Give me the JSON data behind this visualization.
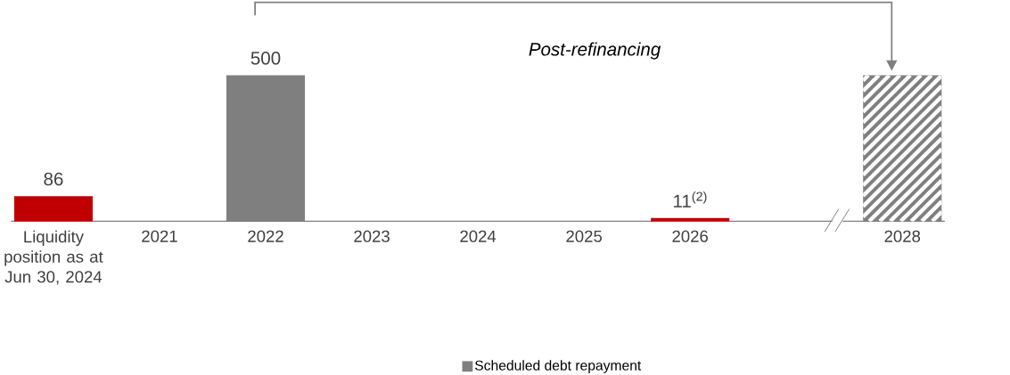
{
  "chart_data": {
    "type": "bar",
    "categories": [
      "Liquidity position as at Jun 30, 2024",
      "2021",
      "2022",
      "2023",
      "2024",
      "2025",
      "2026",
      null,
      "2028"
    ],
    "series": [
      {
        "name": "Scheduled debt repayment",
        "color": "#7f7f7f",
        "values": [
          null,
          null,
          500,
          null,
          null,
          null,
          null,
          null,
          null
        ],
        "value_labels": [
          null,
          null,
          "500",
          null,
          null,
          null,
          null,
          null,
          null
        ]
      },
      {
        "color": "#c00000",
        "values": [
          86,
          null,
          null,
          null,
          null,
          null,
          11,
          null,
          null
        ],
        "value_labels": [
          "86",
          null,
          null,
          null,
          null,
          null,
          "11$^{(2)}$",
          null,
          null
        ]
      },
      {
        "color": "#7f7f7f",
        "values": [
          null,
          null,
          null,
          null,
          null,
          null,
          null,
          null,
          500
        ]
      }
    ],
    "annotations": [
      "Post-refinancing"
    ],
    "legend": "bottom"
  }
}
